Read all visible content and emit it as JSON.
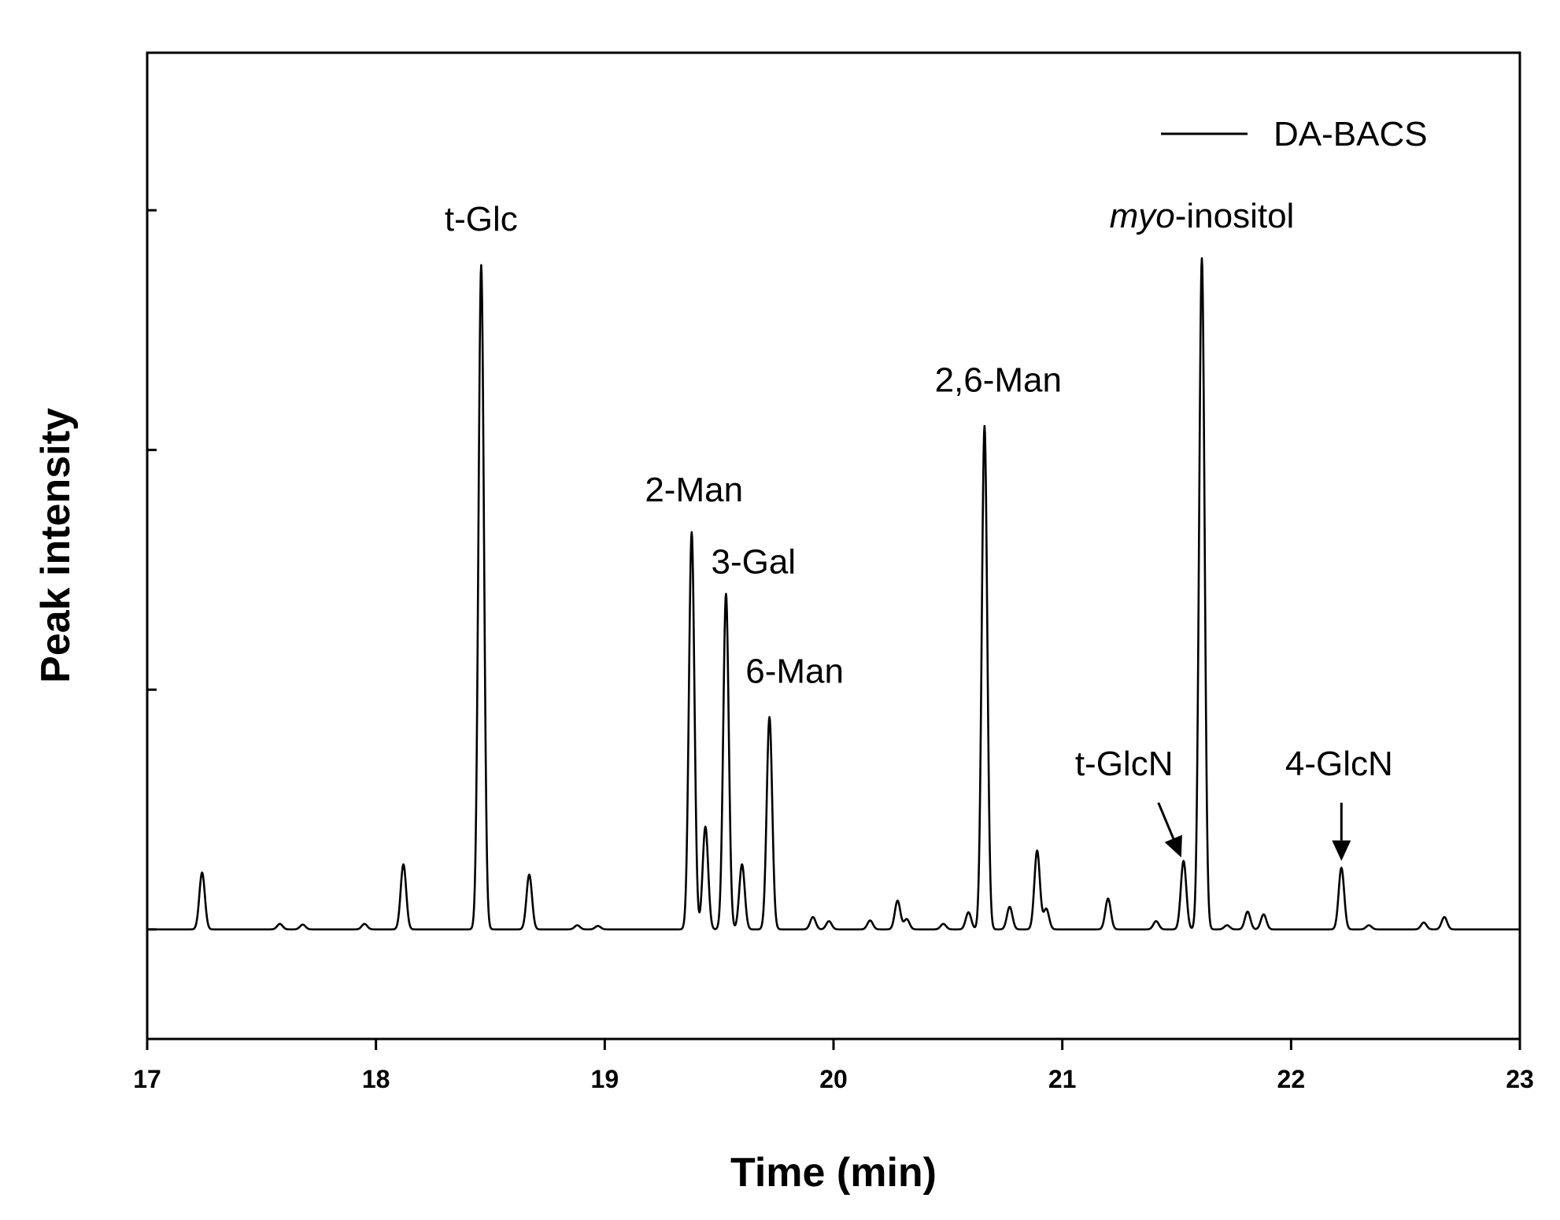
{
  "chart_data": {
    "type": "line",
    "xlabel": "Time (min)",
    "ylabel": "Peak intensity",
    "xlim": [
      17,
      23
    ],
    "ylim": [
      -0.16,
      1.28
    ],
    "x_ticks": [
      "17",
      "18",
      "19",
      "20",
      "21",
      "22",
      "23"
    ],
    "y_ticks": [
      0,
      0.35,
      0.7,
      1.05
    ],
    "grid": false,
    "legend_position": "top-right",
    "series": [
      {
        "name": "DA-BACS",
        "color": "#000000",
        "baseline": 0.0,
        "peaks": [
          {
            "x": 17.24,
            "h": 0.083
          },
          {
            "x": 17.58,
            "h": 0.008
          },
          {
            "x": 17.68,
            "h": 0.007
          },
          {
            "x": 17.95,
            "h": 0.008
          },
          {
            "x": 18.12,
            "h": 0.095
          },
          {
            "x": 18.46,
            "h": 0.97
          },
          {
            "x": 18.67,
            "h": 0.08
          },
          {
            "x": 18.88,
            "h": 0.006
          },
          {
            "x": 18.97,
            "h": 0.005
          },
          {
            "x": 19.38,
            "h": 0.58
          },
          {
            "x": 19.44,
            "h": 0.15
          },
          {
            "x": 19.53,
            "h": 0.49
          },
          {
            "x": 19.6,
            "h": 0.095
          },
          {
            "x": 19.72,
            "h": 0.31
          },
          {
            "x": 19.91,
            "h": 0.018
          },
          {
            "x": 19.98,
            "h": 0.012
          },
          {
            "x": 20.16,
            "h": 0.013
          },
          {
            "x": 20.28,
            "h": 0.042
          },
          {
            "x": 20.32,
            "h": 0.015
          },
          {
            "x": 20.48,
            "h": 0.008
          },
          {
            "x": 20.59,
            "h": 0.025
          },
          {
            "x": 20.66,
            "h": 0.735
          },
          {
            "x": 20.77,
            "h": 0.033
          },
          {
            "x": 20.89,
            "h": 0.115
          },
          {
            "x": 20.93,
            "h": 0.03
          },
          {
            "x": 21.2,
            "h": 0.045
          },
          {
            "x": 21.41,
            "h": 0.012
          },
          {
            "x": 21.53,
            "h": 0.1
          },
          {
            "x": 21.61,
            "h": 0.98
          },
          {
            "x": 21.72,
            "h": 0.006
          },
          {
            "x": 21.81,
            "h": 0.026
          },
          {
            "x": 21.88,
            "h": 0.022
          },
          {
            "x": 22.22,
            "h": 0.09
          },
          {
            "x": 22.34,
            "h": 0.006
          },
          {
            "x": 22.58,
            "h": 0.01
          },
          {
            "x": 22.67,
            "h": 0.018
          }
        ]
      }
    ],
    "annotations": [
      {
        "text": "t-Glc",
        "x": 18.46,
        "y": 1.02,
        "anchor": "middle"
      },
      {
        "text": "2-Man",
        "x": 19.39,
        "y": 0.625,
        "anchor": "middle"
      },
      {
        "text": "3-Gal",
        "x": 19.65,
        "y": 0.52,
        "anchor": "middle"
      },
      {
        "text": "6-Man",
        "x": 19.83,
        "y": 0.36,
        "anchor": "middle"
      },
      {
        "text": "2,6-Man",
        "x": 20.72,
        "y": 0.785,
        "anchor": "middle"
      },
      {
        "text_italic": "myo",
        "text": "-inosito​l",
        "x": 21.61,
        "y": 1.025,
        "anchor": "middle"
      },
      {
        "text": "t-GlcN",
        "x": 21.27,
        "y": 0.225,
        "anchor": "middle"
      },
      {
        "text": "4-GlcN",
        "x": 22.21,
        "y": 0.225,
        "anchor": "middle"
      }
    ],
    "arrows": [
      {
        "label": "t-GlcN",
        "from": [
          21.42,
          0.185
        ],
        "to": [
          21.52,
          0.105
        ]
      },
      {
        "label": "4-GlcN",
        "from": [
          22.22,
          0.185
        ],
        "to": [
          22.22,
          0.1
        ]
      }
    ]
  }
}
